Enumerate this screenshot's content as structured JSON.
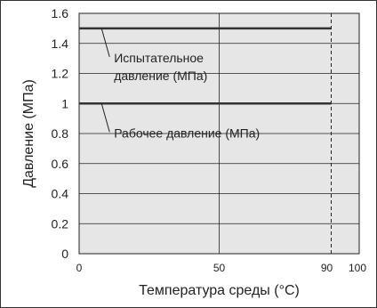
{
  "chart_data": {
    "type": "line",
    "xlabel": "Температура среды (°C)",
    "ylabel": "Давление (МПа)",
    "xlim": [
      0,
      100
    ],
    "ylim": [
      0,
      1.6
    ],
    "x_ticks": [
      {
        "value": 0,
        "label": "0"
      },
      {
        "value": 50,
        "label": "50"
      },
      {
        "value": 90,
        "label": "90"
      },
      {
        "value": 100,
        "label": "100"
      }
    ],
    "y_ticks": [
      {
        "value": 0,
        "label": "0"
      },
      {
        "value": 0.2,
        "label": "0.2"
      },
      {
        "value": 0.4,
        "label": "0.4"
      },
      {
        "value": 0.6,
        "label": "0.6"
      },
      {
        "value": 0.8,
        "label": "0.8"
      },
      {
        "value": 1.0,
        "label": "1"
      },
      {
        "value": 1.2,
        "label": "1.2"
      },
      {
        "value": 1.4,
        "label": "1.4"
      },
      {
        "value": 1.6,
        "label": "1.6"
      }
    ],
    "grid": true,
    "plot_background": "#e6e6e6",
    "series_color": "#333333",
    "limit_line": {
      "x": 90,
      "style": "dashed"
    },
    "series": [
      {
        "label_lines": [
          "Испытательное",
          "давление (МПа)"
        ],
        "x": [
          0,
          90
        ],
        "y": [
          1.5,
          1.5
        ],
        "label_anchor_x": 8
      },
      {
        "label_lines": [
          "Рабочее давление (МПа)"
        ],
        "x": [
          0,
          90
        ],
        "y": [
          1.0,
          1.0
        ],
        "label_anchor_x": 8
      }
    ]
  }
}
